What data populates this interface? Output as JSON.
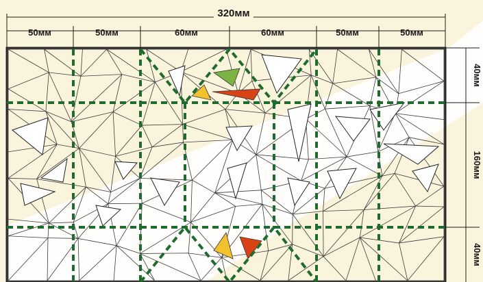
{
  "diagram": {
    "overall_width_label": "320мм",
    "column_labels": [
      "50мм",
      "50мм",
      "60мм",
      "60мм",
      "50мм",
      "50мм"
    ],
    "row_labels": [
      "40мм",
      "160мм",
      "40мм"
    ],
    "colors": {
      "background": "#fbf4dc",
      "light_band": "#ffffff",
      "dashed_guides": "#1e6b2e",
      "frame": "#2b2b2b",
      "mesh_lines": "#3a3a3a",
      "triangle_green": "#7cb342",
      "triangle_yellow": "#f2c12e",
      "triangle_red": "#d84315"
    }
  }
}
